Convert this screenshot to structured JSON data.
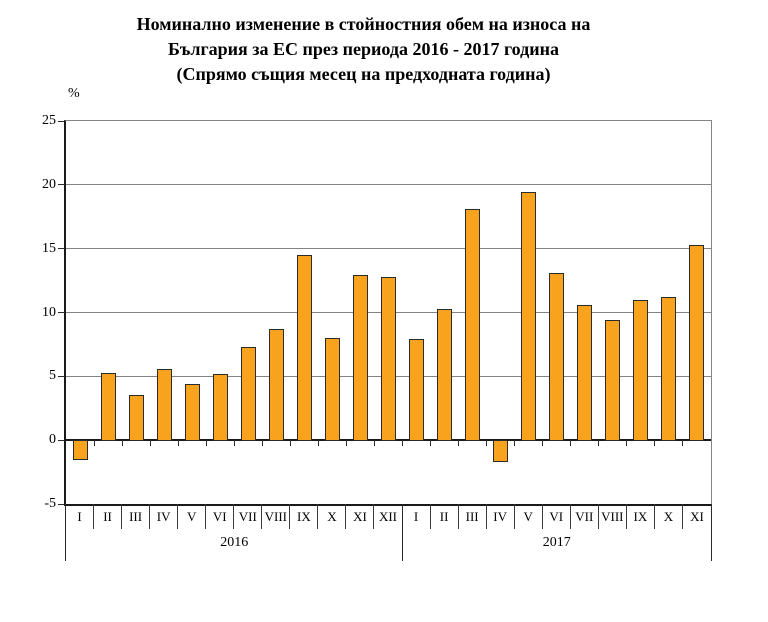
{
  "title": {
    "line1": "Номинално изменение в стойностния обем на износа на",
    "line2": "България за ЕС през периода 2016 - 2017 година",
    "line3": "(Спрямо същия месец на предходната година)"
  },
  "y_axis_unit": "%",
  "chart_data": {
    "type": "bar",
    "title": "Номинално изменение в стойностния обем на износа на България за ЕС през периода 2016 - 2017 година (Спрямо същия месец на предходната година)",
    "xlabel": "",
    "ylabel": "%",
    "ylim": [
      -5,
      25
    ],
    "yticks": [
      25,
      20,
      15,
      10,
      5,
      0,
      -5
    ],
    "grid": true,
    "legend_position": "none",
    "bar_color": "#F9A21D",
    "bar_border_color": "#2b2b2b",
    "series": [
      {
        "year": "2016",
        "categories": [
          "I",
          "II",
          "III",
          "IV",
          "V",
          "VI",
          "VII",
          "VIII",
          "IX",
          "X",
          "XI",
          "XII"
        ],
        "values": [
          -1.5,
          5.3,
          3.5,
          5.6,
          4.4,
          5.2,
          7.3,
          8.7,
          14.5,
          8.0,
          12.9,
          12.8
        ]
      },
      {
        "year": "2017",
        "categories": [
          "I",
          "II",
          "III",
          "IV",
          "V",
          "VI",
          "VII",
          "VIII",
          "IX",
          "X",
          "XI"
        ],
        "values": [
          7.9,
          10.3,
          18.1,
          -1.6,
          19.4,
          13.1,
          10.6,
          9.4,
          11.0,
          11.2,
          15.3
        ]
      }
    ]
  }
}
